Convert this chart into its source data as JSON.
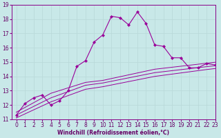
{
  "title": "",
  "xlabel": "Windchill (Refroidissement éolien,°C)",
  "bg_color": "#c8e8e8",
  "line_color": "#990099",
  "grid_color": "#b8d8d8",
  "x_data": [
    0,
    1,
    2,
    3,
    4,
    5,
    6,
    7,
    8,
    9,
    10,
    11,
    12,
    13,
    14,
    15,
    16,
    17,
    18,
    19,
    20,
    21,
    22,
    23
  ],
  "y_main": [
    11.3,
    12.1,
    12.5,
    12.7,
    12.0,
    12.3,
    13.0,
    14.7,
    15.1,
    16.4,
    16.9,
    18.2,
    18.1,
    17.6,
    18.5,
    17.7,
    16.2,
    16.1,
    15.3,
    15.3,
    14.6,
    14.6,
    14.9,
    14.8
  ],
  "y_trend1": [
    11.5,
    11.83,
    12.16,
    12.49,
    12.82,
    13.01,
    13.2,
    13.39,
    13.58,
    13.65,
    13.72,
    13.85,
    13.98,
    14.11,
    14.24,
    14.37,
    14.5,
    14.57,
    14.64,
    14.71,
    14.78,
    14.85,
    14.92,
    14.99
  ],
  "y_trend2": [
    11.3,
    11.6,
    11.9,
    12.2,
    12.5,
    12.72,
    12.94,
    13.16,
    13.38,
    13.46,
    13.54,
    13.66,
    13.78,
    13.9,
    14.02,
    14.14,
    14.26,
    14.33,
    14.4,
    14.47,
    14.54,
    14.61,
    14.68,
    14.75
  ],
  "y_trend3": [
    11.1,
    11.38,
    11.66,
    11.94,
    12.22,
    12.44,
    12.66,
    12.88,
    13.1,
    13.19,
    13.28,
    13.4,
    13.52,
    13.64,
    13.76,
    13.88,
    14.0,
    14.08,
    14.16,
    14.24,
    14.32,
    14.4,
    14.48,
    14.55
  ],
  "ylim": [
    11,
    19
  ],
  "xlim": [
    -0.5,
    23
  ],
  "yticks": [
    11,
    12,
    13,
    14,
    15,
    16,
    17,
    18,
    19
  ],
  "xticks": [
    0,
    1,
    2,
    3,
    4,
    5,
    6,
    7,
    8,
    9,
    10,
    11,
    12,
    13,
    14,
    15,
    16,
    17,
    18,
    19,
    20,
    21,
    22,
    23
  ],
  "tick_fontsize": 5.5,
  "label_fontsize": 5.5
}
